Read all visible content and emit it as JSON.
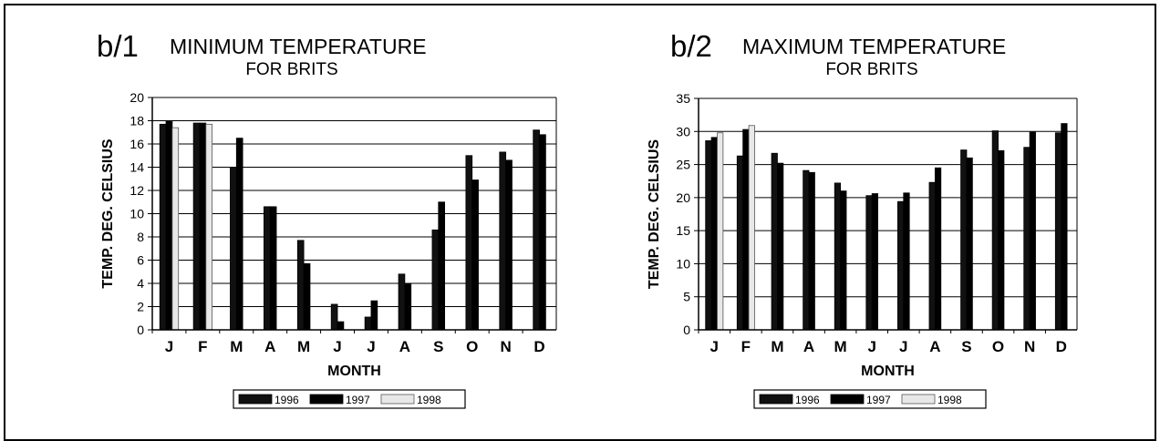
{
  "chart_data": [
    {
      "type": "bar",
      "panel_label": "b/1",
      "title": "MINIMUM TEMPERATURE",
      "subtitle": "FOR BRITS",
      "xlabel": "MONTH",
      "ylabel": "TEMP. DEG. CELSIUS",
      "ylim": [
        0,
        20
      ],
      "yticks": [
        "0",
        "2",
        "4",
        "6",
        "8",
        "10",
        "12",
        "14",
        "16",
        "18",
        "20"
      ],
      "grid": true,
      "legend_position": "bottom-center",
      "categories": [
        "J",
        "F",
        "M",
        "A",
        "M",
        "J",
        "J",
        "A",
        "S",
        "O",
        "N",
        "D"
      ],
      "series": [
        {
          "name": "1996",
          "color": "#111111",
          "values": [
            17.7,
            17.8,
            14.0,
            10.6,
            7.7,
            2.2,
            1.1,
            4.8,
            8.6,
            15.0,
            15.3,
            17.2
          ]
        },
        {
          "name": "1997",
          "color": "#000000",
          "values": [
            18.0,
            17.8,
            16.5,
            10.6,
            5.7,
            0.7,
            2.5,
            4.0,
            11.0,
            12.9,
            14.6,
            16.8
          ]
        },
        {
          "name": "1998",
          "color": "#e8e8e8",
          "values": [
            17.4,
            17.7,
            null,
            null,
            null,
            null,
            null,
            null,
            null,
            null,
            null,
            null
          ]
        }
      ]
    },
    {
      "type": "bar",
      "panel_label": "b/2",
      "title": "MAXIMUM TEMPERATURE",
      "subtitle": "FOR BRITS",
      "xlabel": "MONTH",
      "ylabel": "TEMP. DEG. CELSIUS",
      "ylim": [
        0,
        35
      ],
      "yticks": [
        "0",
        "5",
        "10",
        "15",
        "20",
        "25",
        "30",
        "35"
      ],
      "grid": true,
      "legend_position": "bottom-center",
      "categories": [
        "J",
        "F",
        "M",
        "A",
        "M",
        "J",
        "J",
        "A",
        "S",
        "O",
        "N",
        "D"
      ],
      "series": [
        {
          "name": "1996",
          "color": "#111111",
          "values": [
            28.6,
            26.3,
            26.7,
            24.1,
            22.2,
            20.3,
            19.4,
            22.3,
            27.2,
            30.1,
            27.6,
            29.8
          ]
        },
        {
          "name": "1997",
          "color": "#000000",
          "values": [
            29.1,
            30.3,
            25.2,
            23.8,
            21.0,
            20.6,
            20.7,
            24.5,
            26.0,
            27.1,
            29.9,
            31.2
          ]
        },
        {
          "name": "1998",
          "color": "#e8e8e8",
          "values": [
            29.8,
            30.9,
            null,
            null,
            null,
            null,
            null,
            null,
            null,
            null,
            null,
            null
          ]
        }
      ]
    }
  ]
}
